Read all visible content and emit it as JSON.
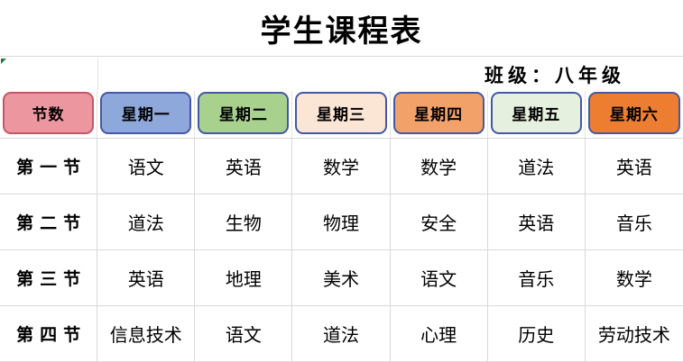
{
  "title": "学生课程表",
  "class_label": "班级：八年级",
  "table": {
    "header": [
      {
        "label": "节数",
        "fill": "#ec97a0",
        "border": "#c3566a"
      },
      {
        "label": "星期一",
        "fill": "#8fa8dc",
        "border": "#4458a5"
      },
      {
        "label": "星期二",
        "fill": "#a9d18e",
        "border": "#4458a5"
      },
      {
        "label": "星期三",
        "fill": "#fbe5d5",
        "border": "#4458a5"
      },
      {
        "label": "星期四",
        "fill": "#f2a269",
        "border": "#4458a5"
      },
      {
        "label": "星期五",
        "fill": "#e5f0de",
        "border": "#4458a5"
      },
      {
        "label": "星期六",
        "fill": "#ed7d31",
        "border": "#4458a5"
      }
    ],
    "rows": [
      {
        "period": "第一节",
        "subjects": [
          "语文",
          "英语",
          "数学",
          "数学",
          "道法",
          "英语"
        ]
      },
      {
        "period": "第二节",
        "subjects": [
          "道法",
          "生物",
          "物理",
          "安全",
          "英语",
          "音乐"
        ]
      },
      {
        "period": "第三节",
        "subjects": [
          "英语",
          "地理",
          "美术",
          "语文",
          "音乐",
          "数学"
        ]
      },
      {
        "period": "第四节",
        "subjects": [
          "信息技术",
          "语文",
          "道法",
          "心理",
          "历史",
          "劳动技术"
        ]
      }
    ]
  },
  "colors": {
    "gridline": "#d9d9d9",
    "error_triangle": "#1c7c3c",
    "header_border_blue": "#4458a5",
    "header_border_rose": "#c3566a"
  }
}
